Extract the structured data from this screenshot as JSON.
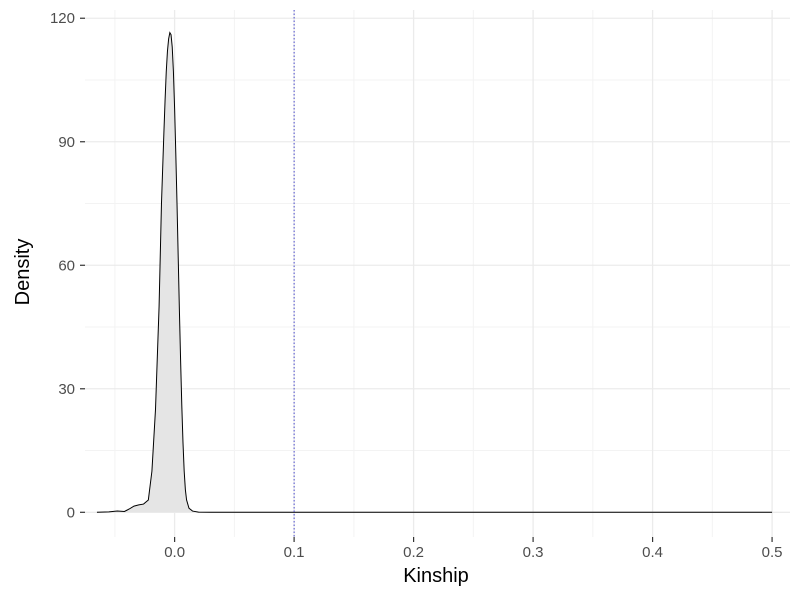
{
  "chart_data": {
    "type": "area",
    "xlabel": "Kinship",
    "ylabel": "Density",
    "xlim": [
      -0.075,
      0.515
    ],
    "ylim": [
      -6,
      122
    ],
    "x_ticks": [
      0.0,
      0.1,
      0.2,
      0.3,
      0.4,
      0.5
    ],
    "x_tick_labels": [
      "0.0",
      "0.1",
      "0.2",
      "0.3",
      "0.4",
      "0.5"
    ],
    "y_ticks": [
      0,
      30,
      60,
      90,
      120
    ],
    "y_tick_labels": [
      "0",
      "30",
      "60",
      "90",
      "120"
    ],
    "grid": true,
    "fill_color": "#e5e5e5",
    "line_color": "#000000",
    "reference_line": {
      "x": 0.1,
      "color": "#4b4bcc",
      "style": "dotted"
    },
    "series": [
      {
        "x": [
          -0.065,
          -0.055,
          -0.048,
          -0.042,
          -0.038,
          -0.034,
          -0.03,
          -0.026,
          -0.022,
          -0.019,
          -0.016,
          -0.013,
          -0.011,
          -0.009,
          -0.008,
          -0.007,
          -0.006,
          -0.005,
          -0.004,
          -0.003,
          -0.002,
          -0.001,
          0.0,
          0.001,
          0.002,
          0.003,
          0.004,
          0.005,
          0.006,
          0.007,
          0.008,
          0.009,
          0.01,
          0.012,
          0.015,
          0.02,
          0.03,
          0.05,
          0.1,
          0.2,
          0.3,
          0.4,
          0.5
        ],
        "y": [
          0,
          0.1,
          0.3,
          0.2,
          0.8,
          1.5,
          1.8,
          2.0,
          3.0,
          10,
          25,
          50,
          75,
          92,
          100,
          107,
          112,
          115,
          116.5,
          116,
          113,
          107,
          98,
          87,
          75,
          62,
          49,
          37,
          26,
          17,
          10,
          5.5,
          3,
          1,
          0.3,
          0.05,
          0,
          0,
          0,
          0,
          0,
          0,
          0
        ]
      }
    ]
  }
}
